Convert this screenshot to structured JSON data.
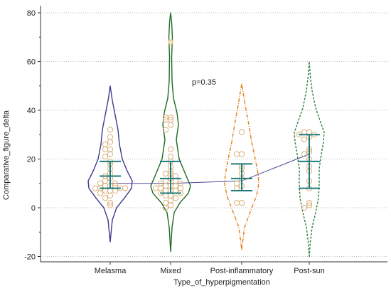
{
  "chart_data": {
    "type": "violin",
    "title": "",
    "xlabel": "Type_of_hyperpigmentation",
    "ylabel": "Comparative_figure_delta",
    "ylim": [
      -22,
      80
    ],
    "yticks": [
      -20,
      0,
      20,
      40,
      60,
      80
    ],
    "grid": "horizontal dotted",
    "annotation": "p=0.35",
    "categories": [
      "Melasma",
      "Mixed",
      "Post-inflammatory",
      "Post-sun"
    ],
    "series": [
      {
        "category": "Melasma",
        "color": "#3d3a8c",
        "line_style": "solid",
        "violin_range": [
          -14,
          50
        ],
        "medians_line_value": 10,
        "errorbar": {
          "mean": 13,
          "low": 8,
          "high": 19
        },
        "points": [
          32,
          29,
          27,
          26,
          24,
          24,
          22,
          21,
          19,
          18,
          16,
          14,
          13,
          12,
          11,
          10,
          10,
          9,
          9,
          9,
          8,
          8,
          8,
          8,
          7,
          7,
          7,
          6,
          5,
          4,
          2,
          1
        ]
      },
      {
        "category": "Mixed",
        "color": "#1f6b1f",
        "line_style": "solid",
        "violin_range": [
          -18,
          80
        ],
        "medians_line_value": 10,
        "errorbar": {
          "mean": 12,
          "low": 6,
          "high": 19
        },
        "outlier": 68,
        "points": [
          37,
          37,
          36,
          36,
          34,
          32,
          24,
          21,
          19,
          17,
          15,
          14,
          14,
          13,
          12,
          11,
          11,
          10,
          10,
          9,
          9,
          9,
          8,
          8,
          8,
          7,
          7,
          7,
          6,
          6,
          5,
          5,
          4,
          3,
          2,
          1,
          0
        ]
      },
      {
        "category": "Post-inflammatory",
        "color": "#e07a10",
        "line_style": "dash-dot",
        "violin_range": [
          -17,
          51
        ],
        "medians_line_value": 11,
        "errorbar": {
          "mean": 12,
          "low": 7,
          "high": 18
        },
        "points": [
          31,
          22,
          22,
          17,
          16,
          14,
          12,
          10,
          9,
          8,
          2,
          2
        ]
      },
      {
        "category": "Post-sun",
        "color": "#2e7d3a",
        "line_style": "dashed",
        "violin_range": [
          -20,
          60
        ],
        "medians_line_value": 22,
        "errorbar": {
          "mean": 19,
          "low": 8,
          "high": 30
        },
        "points": [
          31,
          31,
          30,
          30,
          29,
          28,
          24,
          23,
          22,
          20,
          17,
          15,
          11,
          8,
          2,
          1,
          0
        ]
      }
    ]
  }
}
